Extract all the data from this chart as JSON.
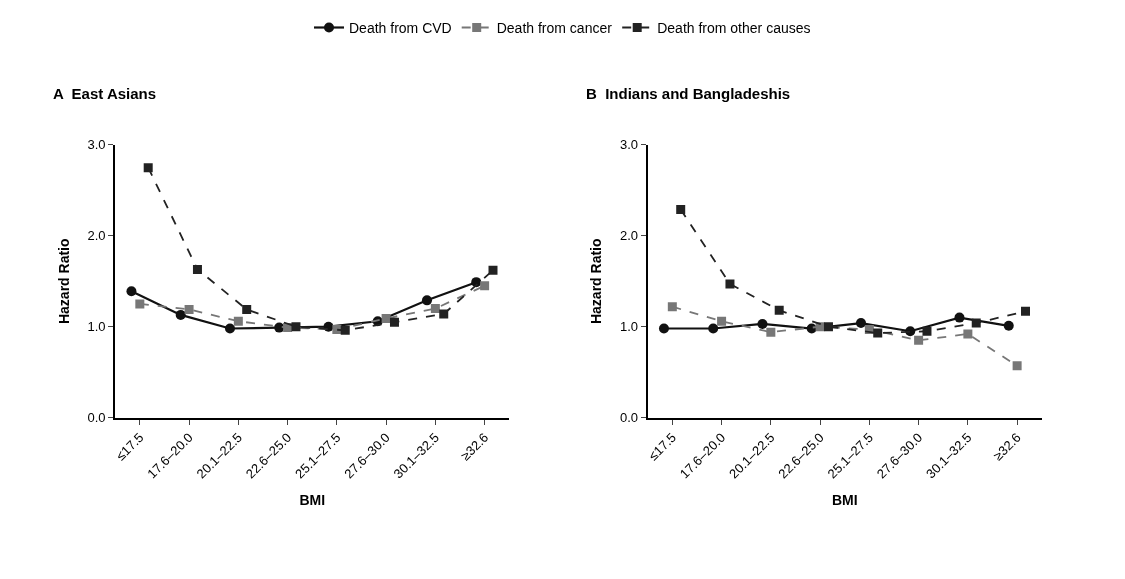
{
  "chart_data": [
    {
      "type": "line",
      "title": "A  East Asians",
      "xlabel": "BMI",
      "ylabel": "Hazard Ratio",
      "categories": [
        "≤17.5",
        "17.6–20.0",
        "20.1–22.5",
        "22.6–25.0",
        "25.1–27.5",
        "27.6–30.0",
        "30.1–32.5",
        "≥32.6"
      ],
      "ylim": [
        0.0,
        3.0
      ],
      "yticks": [
        {
          "value": 0,
          "label": "0.0"
        },
        {
          "value": 1,
          "label": "1.0"
        },
        {
          "value": 2,
          "label": "2.0"
        },
        {
          "value": 3,
          "label": "3.0"
        }
      ],
      "legend": "top",
      "series": [
        {
          "name": "Death from CVD",
          "color": "#111111",
          "marker": "circle",
          "line_style": "solid",
          "values": [
            1.39,
            1.13,
            0.98,
            0.99,
            1.0,
            1.06,
            1.29,
            1.49
          ]
        },
        {
          "name": "Death from cancer",
          "color": "#777777",
          "marker": "square",
          "line_style": "dashed",
          "values": [
            1.25,
            1.19,
            1.06,
            0.99,
            0.97,
            1.09,
            1.2,
            1.45
          ]
        },
        {
          "name": "Death from other causes",
          "color": "#222222",
          "marker": "square",
          "line_style": "dashed",
          "values": [
            2.75,
            1.63,
            1.19,
            1.0,
            0.96,
            1.05,
            1.14,
            1.62
          ]
        }
      ]
    },
    {
      "type": "line",
      "title": "B  Indians and Bangladeshis",
      "xlabel": "BMI",
      "ylabel": "Hazard Ratio",
      "categories": [
        "≤17.5",
        "17.6–20.0",
        "20.1–22.5",
        "22.6–25.0",
        "25.1–27.5",
        "27.6–30.0",
        "30.1–32.5",
        "≥32.6"
      ],
      "ylim": [
        0.0,
        3.0
      ],
      "yticks": [
        {
          "value": 0,
          "label": "0.0"
        },
        {
          "value": 1,
          "label": "1.0"
        },
        {
          "value": 2,
          "label": "2.0"
        },
        {
          "value": 3,
          "label": "3.0"
        }
      ],
      "legend": "top",
      "series": [
        {
          "name": "Death from CVD",
          "color": "#111111",
          "marker": "circle",
          "line_style": "solid",
          "values": [
            0.98,
            0.98,
            1.03,
            0.98,
            1.04,
            0.95,
            1.1,
            1.01
          ]
        },
        {
          "name": "Death from cancer",
          "color": "#777777",
          "marker": "square",
          "line_style": "dashed",
          "values": [
            1.22,
            1.06,
            0.94,
            1.0,
            0.97,
            0.85,
            0.92,
            0.57
          ]
        },
        {
          "name": "Death from other causes",
          "color": "#222222",
          "marker": "square",
          "line_style": "dashed",
          "values": [
            2.29,
            1.47,
            1.18,
            1.0,
            0.93,
            0.95,
            1.04,
            1.17
          ]
        }
      ]
    }
  ]
}
